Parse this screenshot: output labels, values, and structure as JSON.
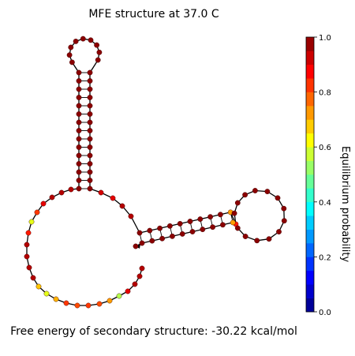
{
  "title": "MFE structure at 37.0 C",
  "footer": "Free energy of secondary structure: -30.22 kcal/mol",
  "colorbar": {
    "label": "Equilibrium probability",
    "ticks": [
      "0.0",
      "0.2",
      "0.4",
      "0.6",
      "0.8",
      "1.0"
    ],
    "range": [
      0.0,
      1.0
    ],
    "colormap": "jet"
  },
  "structure": {
    "type": "rna-secondary-structure",
    "colors": {
      "backbone": "#000000",
      "pair_line": "#000000"
    }
  }
}
